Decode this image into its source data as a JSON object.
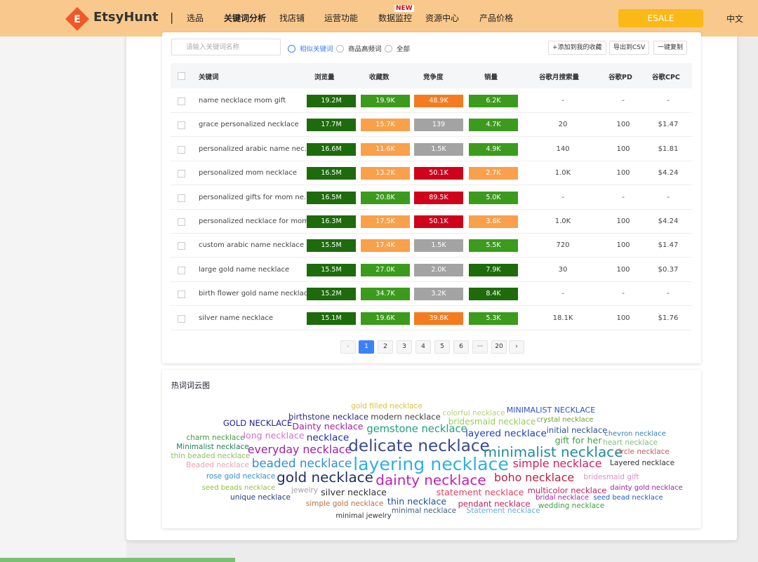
{
  "nav": {
    "logo": "EtsyHunt",
    "menu": [
      "选品",
      "关键词分析",
      "找店铺",
      "运营功能",
      "数据监控",
      "资源中心",
      "产品价格"
    ],
    "badge": "NEW",
    "button": "ESALE",
    "lang": "中文"
  },
  "toolbar": {
    "placeholder": "请输入关键词名称",
    "options": [
      "相似关键词",
      "商品高频词",
      "全部"
    ],
    "buttons": [
      "+添加到我的收藏",
      "导出到CSV",
      "一键复制"
    ]
  },
  "table": {
    "headers": [
      "关键词",
      "浏览量",
      "收藏数",
      "竞争度",
      "销量",
      "谷歌月搜索量",
      "谷歌PD",
      "谷歌CPC"
    ],
    "rows": [
      {
        "keyword": "name necklace mom gift",
        "views": {
          "text": "19.2M",
          "color": "#1e6b0c"
        },
        "favs": {
          "text": "19.9K",
          "color": "#3c9b1c"
        },
        "comp": {
          "text": "48.9K",
          "color": "#f47b20"
        },
        "sales": {
          "text": "6.2K",
          "color": "#3c9b1c"
        },
        "gmonth": "-",
        "gpd": "-",
        "gcpc": "-"
      },
      {
        "keyword": "grace personalized necklace",
        "views": {
          "text": "17.7M",
          "color": "#1e6b0c"
        },
        "favs": {
          "text": "15.7K",
          "color": "#f9a04a"
        },
        "comp": {
          "text": "139",
          "color": "#a3a3a3"
        },
        "sales": {
          "text": "4.7K",
          "color": "#3c9b1c"
        },
        "gmonth": "20",
        "gpd": "100",
        "gcpc": "$1.47"
      },
      {
        "keyword": "personalized arabic name nec...",
        "views": {
          "text": "16.6M",
          "color": "#1e6b0c"
        },
        "favs": {
          "text": "11.6K",
          "color": "#f9a04a"
        },
        "comp": {
          "text": "1.5K",
          "color": "#a3a3a3"
        },
        "sales": {
          "text": "4.9K",
          "color": "#3c9b1c"
        },
        "gmonth": "140",
        "gpd": "100",
        "gcpc": "$1.81"
      },
      {
        "keyword": "personalized mom necklace",
        "views": {
          "text": "16.5M",
          "color": "#1e6b0c"
        },
        "favs": {
          "text": "13.2K",
          "color": "#f9a04a"
        },
        "comp": {
          "text": "50.1K",
          "color": "#d0021b"
        },
        "sales": {
          "text": "2.7K",
          "color": "#f9a04a"
        },
        "gmonth": "1.0K",
        "gpd": "100",
        "gcpc": "$4.24"
      },
      {
        "keyword": "personalized gifts for mom ne...",
        "views": {
          "text": "16.5M",
          "color": "#1e6b0c"
        },
        "favs": {
          "text": "20.8K",
          "color": "#3c9b1c"
        },
        "comp": {
          "text": "89.5K",
          "color": "#d0021b"
        },
        "sales": {
          "text": "5.0K",
          "color": "#3c9b1c"
        },
        "gmonth": "-",
        "gpd": "-",
        "gcpc": "-"
      },
      {
        "keyword": "personalized necklace for mom",
        "views": {
          "text": "16.3M",
          "color": "#1e6b0c"
        },
        "favs": {
          "text": "17.5K",
          "color": "#f9a04a"
        },
        "comp": {
          "text": "50.1K",
          "color": "#d0021b"
        },
        "sales": {
          "text": "3.6K",
          "color": "#f9a04a"
        },
        "gmonth": "1.0K",
        "gpd": "100",
        "gcpc": "$4.24"
      },
      {
        "keyword": "custom arabic name necklace",
        "views": {
          "text": "15.5M",
          "color": "#1e6b0c"
        },
        "favs": {
          "text": "17.4K",
          "color": "#f9a04a"
        },
        "comp": {
          "text": "1.5K",
          "color": "#a3a3a3"
        },
        "sales": {
          "text": "5.5K",
          "color": "#3c9b1c"
        },
        "gmonth": "720",
        "gpd": "100",
        "gcpc": "$1.47"
      },
      {
        "keyword": "large gold name necklace",
        "views": {
          "text": "15.5M",
          "color": "#1e6b0c"
        },
        "favs": {
          "text": "27.0K",
          "color": "#3c9b1c"
        },
        "comp": {
          "text": "2.0K",
          "color": "#a3a3a3"
        },
        "sales": {
          "text": "7.9K",
          "color": "#1e6b0c"
        },
        "gmonth": "30",
        "gpd": "100",
        "gcpc": "$0.37"
      },
      {
        "keyword": "birth flower gold name necklace",
        "views": {
          "text": "15.2M",
          "color": "#1e6b0c"
        },
        "favs": {
          "text": "34.7K",
          "color": "#3c9b1c"
        },
        "comp": {
          "text": "3.2K",
          "color": "#a3a3a3"
        },
        "sales": {
          "text": "8.4K",
          "color": "#1e6b0c"
        },
        "gmonth": "-",
        "gpd": "-",
        "gcpc": "-"
      },
      {
        "keyword": "silver name necklace",
        "views": {
          "text": "15.1M",
          "color": "#1e6b0c"
        },
        "favs": {
          "text": "19.6K",
          "color": "#3c9b1c"
        },
        "comp": {
          "text": "39.8K",
          "color": "#f47b20"
        },
        "sales": {
          "text": "5.3K",
          "color": "#3c9b1c"
        },
        "gmonth": "18.1K",
        "gpd": "100",
        "gcpc": "$1.76"
      }
    ]
  },
  "pagination": {
    "pages": [
      "1",
      "2",
      "3",
      "4",
      "5",
      "6",
      "···",
      "20"
    ]
  },
  "cloud": {
    "title": "热词词云图",
    "words": [
      {
        "text": "gold filled necklace",
        "color": "#d9c13c"
      },
      {
        "text": "colorful necklace",
        "color": "#b9cf7a"
      },
      {
        "text": "MINIMALIST NECKLACE",
        "color": "#3050d0"
      },
      {
        "text": "birthstone necklace",
        "color": "#2c2c7c"
      },
      {
        "text": "modern necklace",
        "color": "#404040"
      },
      {
        "text": "bridesmaid necklace",
        "color": "#9ccb5a"
      },
      {
        "text": "crystal necklace",
        "color": "#6ea030"
      },
      {
        "text": "GOLD NECKLACE",
        "color": "#20209c"
      },
      {
        "text": "Dainty necklace",
        "color": "#a020a8"
      },
      {
        "text": "gemstone necklace",
        "color": "#1fa07c"
      },
      {
        "text": "layered necklace",
        "color": "#2040c0"
      },
      {
        "text": "initial necklace",
        "color": "#30509c"
      },
      {
        "text": "chevron necklace",
        "color": "#3080c0"
      },
      {
        "text": "charm necklace",
        "color": "#40a040"
      },
      {
        "text": "long necklace",
        "color": "#d070d0"
      },
      {
        "text": "necklace",
        "color": "#20309c"
      },
      {
        "text": "gift for her",
        "color": "#40a040"
      },
      {
        "text": "heart necklace",
        "color": "#80c080"
      },
      {
        "text": "Minimalist necklace",
        "color": "#208060"
      },
      {
        "text": "everyday necklace",
        "color": "#a020a8"
      },
      {
        "text": "delicate necklace",
        "color": "#3a4a8a"
      },
      {
        "text": "minimalist necklace",
        "color": "#208c98"
      },
      {
        "text": "circle necklace",
        "color": "#c06060"
      },
      {
        "text": "thin beaded necklace",
        "color": "#90c060"
      },
      {
        "text": "beaded necklace",
        "color": "#3090d0"
      },
      {
        "text": "layering necklace",
        "color": "#30b0e0"
      },
      {
        "text": "simple necklace",
        "color": "#d02060"
      },
      {
        "text": "Layered necklace",
        "color": "#303030"
      },
      {
        "text": "Beaded necklace",
        "color": "#f0a0b0"
      },
      {
        "text": "rose gold necklace",
        "color": "#3090d0"
      },
      {
        "text": "gold necklace",
        "color": "#203060"
      },
      {
        "text": "dainty necklace",
        "color": "#c020b0"
      },
      {
        "text": "boho necklace",
        "color": "#c02040"
      },
      {
        "text": "bridesmaid gift",
        "color": "#e090c0"
      },
      {
        "text": "seed beads necklace",
        "color": "#90c040"
      },
      {
        "text": "jewelry",
        "color": "#a0a0a0"
      },
      {
        "text": "silver necklace",
        "color": "#303030"
      },
      {
        "text": "statement necklace",
        "color": "#e04060"
      },
      {
        "text": "multicolor necklace",
        "color": "#c02060"
      },
      {
        "text": "dainty gold necklace",
        "color": "#a020a8"
      },
      {
        "text": "unique necklace",
        "color": "#204080"
      },
      {
        "text": "bridal necklace",
        "color": "#a020a8"
      },
      {
        "text": "seed bead necklace",
        "color": "#2060c0"
      },
      {
        "text": "simple gold necklace",
        "color": "#c07040"
      },
      {
        "text": "thin necklace",
        "color": "#205090"
      },
      {
        "text": "pendant necklace",
        "color": "#c02060"
      },
      {
        "text": "wedding necklace",
        "color": "#40a040"
      },
      {
        "text": "minimal necklace",
        "color": "#406080"
      },
      {
        "text": "Statement necklace",
        "color": "#60b0e0"
      },
      {
        "text": "minimal jewelry",
        "color": "#303030"
      }
    ]
  }
}
